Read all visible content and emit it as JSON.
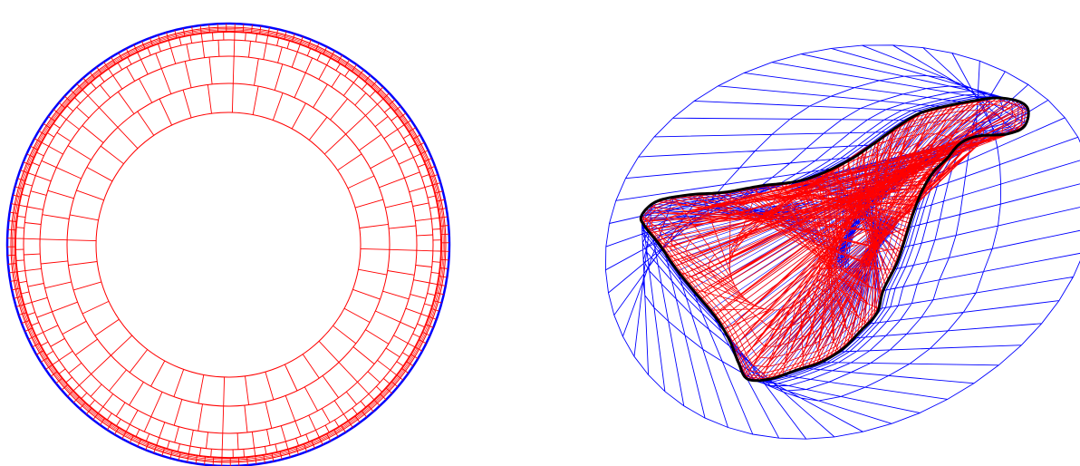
{
  "colors": {
    "background": "#ffffff",
    "inner_mesh": "#ff0000",
    "outer_mesh": "#0000ff",
    "island_coastline": "#000000"
  },
  "figures": [
    {
      "name": "annular-mesh",
      "inner_mesh_color": "#ff0000",
      "boundary_color": "#0000ff",
      "angular_cells_outer": 160,
      "radial_layers": 6
    },
    {
      "name": "island-mesh",
      "inner_mesh_color": "#ff0000",
      "outer_mesh_color": "#0000ff",
      "coastline_color": "#000000",
      "angular_cells_outer": 52,
      "radial_layers_outer": 6
    }
  ]
}
